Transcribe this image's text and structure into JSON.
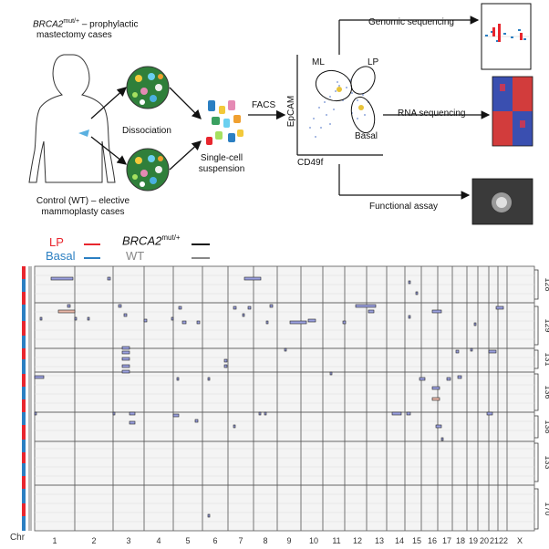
{
  "workflow": {
    "brca_gene": "BRCA2",
    "brca_sup": "mut/+",
    "brca_caption_rest": " – prophylactic",
    "brca_caption_line2": "mastectomy cases",
    "control_caption_line1": "Control (WT) – elective",
    "control_caption_line2": "mammoplasty cases",
    "dissociation": "Dissociation",
    "single_cell_line1": "Single-cell",
    "single_cell_line2": "suspension",
    "facs": "FACS",
    "epcam": "EpCAM",
    "cd49f": "CD49f",
    "gate_ml": "ML",
    "gate_lp": "LP",
    "gate_basal": "Basal",
    "genomic_sequencing": "Genomic sequencing",
    "rna_sequencing": "RNA sequencing",
    "functional_assay": "Functional assay"
  },
  "legend": {
    "lp": "LP",
    "basal": "Basal",
    "brca_gene": "BRCA2",
    "brca_sup": "mut/+",
    "wt": "WT",
    "colors": {
      "lp": "#e8262e",
      "basal": "#2b7fc2",
      "brca": "#111111",
      "wt": "#888888"
    }
  },
  "cnv_map": {
    "chr_axis_label": "Chr",
    "chromosomes": [
      "1",
      "2",
      "3",
      "4",
      "5",
      "6",
      "7",
      "8",
      "9",
      "10",
      "11",
      "12",
      "13",
      "14",
      "15",
      "16",
      "17",
      "18",
      "19",
      "20",
      "21",
      "22",
      "X"
    ],
    "sample_groups": [
      "128",
      "129",
      "131",
      "136",
      "138",
      "133",
      "170"
    ],
    "colors": {
      "gain": "#9aa0e0",
      "loss": "#e9b7a8",
      "stroke": "#222222",
      "grid": "#d8d8d8",
      "band": "#cfcfcf"
    }
  }
}
